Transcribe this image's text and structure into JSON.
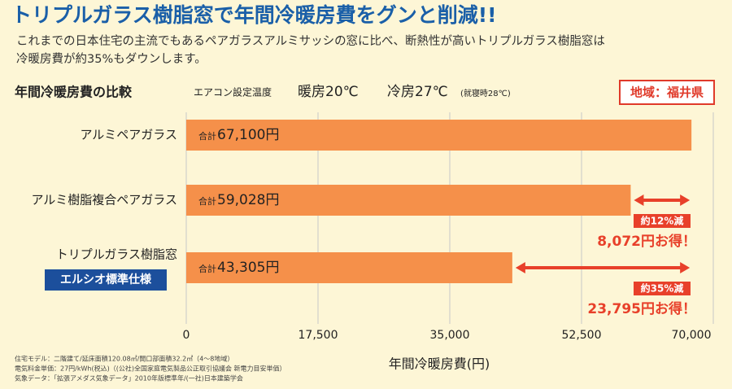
{
  "chart_data": {
    "type": "bar",
    "orientation": "horizontal",
    "title": "トリプルガラス樹脂窓で年間冷暖房費をグンと削減!!",
    "subtitle": [
      "これまでの日本住宅の主流でもあるペアガラスアルミサッシの窓に比べ、断熱性が高いトリプルガラス樹脂窓は",
      "冷暖房費が約35%もダウンします。"
    ],
    "chart_heading": "年間冷暖房費の比較",
    "settings": {
      "label": "エアコン設定温度",
      "heating": "暖房20℃",
      "cooling": "冷房27℃",
      "cooling_note": "(就寝時28℃)"
    },
    "region": "地域：福井県",
    "categories": [
      "アルミペアガラス",
      "アルミ樹脂複合ペアガラス",
      "トリプルガラス樹脂窓"
    ],
    "category_badges": [
      null,
      null,
      "エルシオ標準仕様"
    ],
    "values": [
      67100,
      59028,
      43305
    ],
    "value_prefix": "合計",
    "value_labels": [
      "67,100円",
      "59,028円",
      "43,305円"
    ],
    "color": "#f5904a",
    "xlim": [
      0,
      70000
    ],
    "xticks": [
      0,
      {
        "value": 17500,
        "label": "17,500"
      },
      {
        "value": 35000,
        "label": "35,000"
      },
      {
        "value": 52500,
        "label": "52,500"
      },
      {
        "value": 70000,
        "label": "70,000"
      }
    ],
    "xlabel": "年間冷暖房費(円)",
    "grid": true,
    "savings_color": "#e8402a",
    "savings": [
      null,
      {
        "amount": 8072,
        "percent_label": "約12%減",
        "label": "8,072円お得！"
      },
      {
        "amount": 23795,
        "percent_label": "約35%減",
        "label": "23,795円お得！"
      }
    ],
    "footnotes": [
      "住宅モデル：二階建て/延床面積120.08㎡/開口部面積32.2㎡（4～8地域）",
      "電気料金単価：27円/kWh(税込)（(公社)全国家庭電気製品公正取引協議会 新電力目安単価）",
      "気象データ：「拡張アメダス気象データ」2010年版標準年/(一社)日本建築学会"
    ]
  }
}
